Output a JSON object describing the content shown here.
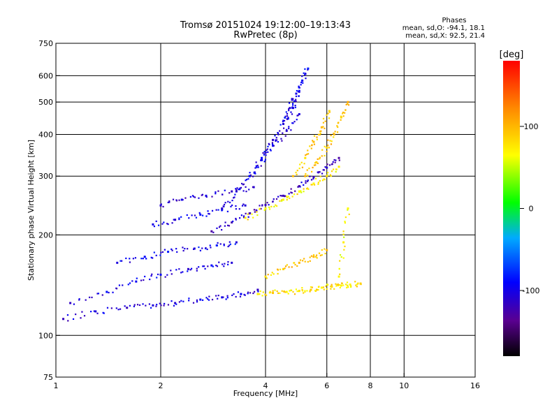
{
  "chart_data": {
    "type": "scatter",
    "title": "Tromsø 20151024 19:12:00–19:13:43",
    "subtitle": "RwPretec (8p)",
    "xlabel": "Frequency [MHz]",
    "ylabel": "Stationary phase Virtual Height [km]",
    "x_scale": "log",
    "y_scale": "log",
    "xlim": [
      1,
      16
    ],
    "ylim": [
      75,
      750
    ],
    "x_ticks": [
      1,
      2,
      4,
      6,
      8,
      10,
      16
    ],
    "y_ticks": [
      75,
      100,
      200,
      300,
      400,
      500,
      600,
      750
    ],
    "x_grid": [
      2,
      4,
      6,
      8,
      10
    ],
    "y_grid": [
      100,
      200,
      300,
      400,
      500,
      600
    ],
    "grid": true,
    "stats": {
      "title": "Phases",
      "o_line": "mean, sd,O: -94.1, 18.1",
      "x_line": "mean, sd,X:  92.5, 21.4"
    },
    "colorbar": {
      "label": "[deg]",
      "ticks": [
        100,
        0,
        -100
      ],
      "range": [
        -180,
        180
      ],
      "colors": [
        "#000000",
        "#5a0090",
        "#0000ff",
        "#00aaff",
        "#00ff00",
        "#ffff00",
        "#ff8800",
        "#ff0000"
      ]
    },
    "traces": [
      {
        "x": [
          1.05,
          1.3,
          1.6,
          1.9,
          2.2,
          2.6,
          3.0,
          3.4,
          3.8
        ],
        "y": [
          112,
          118,
          121,
          123,
          125,
          128,
          130,
          133,
          137
        ],
        "phase": -105
      },
      {
        "x": [
          1.1,
          1.4,
          1.7,
          2.0,
          2.4,
          2.8,
          3.2
        ],
        "y": [
          125,
          135,
          145,
          152,
          158,
          162,
          165
        ],
        "phase": -100
      },
      {
        "x": [
          1.5,
          1.8,
          2.1,
          2.5,
          2.9,
          3.3
        ],
        "y": [
          165,
          172,
          178,
          182,
          186,
          190
        ],
        "phase": -95
      },
      {
        "x": [
          1.9,
          2.2,
          2.6,
          3.0,
          3.5
        ],
        "y": [
          215,
          222,
          230,
          238,
          245
        ],
        "phase": -100
      },
      {
        "x": [
          2.0,
          2.3,
          2.7,
          3.2,
          3.7
        ],
        "y": [
          245,
          255,
          262,
          270,
          278
        ],
        "phase": -110
      },
      {
        "x": [
          2.8,
          3.2,
          3.6,
          4.0,
          4.5,
          5.0,
          5.5,
          6.0,
          6.5
        ],
        "y": [
          205,
          218,
          232,
          246,
          262,
          280,
          298,
          318,
          340
        ],
        "phase": -115
      },
      {
        "x": [
          3.0,
          3.3,
          3.6,
          3.9,
          4.2,
          4.6,
          5.0
        ],
        "y": [
          240,
          270,
          300,
          335,
          370,
          410,
          460
        ],
        "phase": -105
      },
      {
        "x": [
          3.6,
          3.9,
          4.2,
          4.5,
          4.8,
          5.0
        ],
        "y": [
          300,
          340,
          385,
          430,
          480,
          540
        ],
        "phase": -100
      },
      {
        "x": [
          4.5,
          4.7,
          4.9,
          5.1,
          5.3
        ],
        "y": [
          430,
          480,
          530,
          580,
          630
        ],
        "phase": -95
      },
      {
        "x": [
          3.5,
          4.0,
          4.5,
          5.0,
          5.5,
          6.0,
          6.5
        ],
        "y": [
          225,
          240,
          255,
          270,
          285,
          300,
          320
        ],
        "phase": 75
      },
      {
        "x": [
          5.2,
          5.6,
          6.0,
          6.3,
          6.6,
          6.9
        ],
        "y": [
          300,
          330,
          365,
          400,
          450,
          500
        ],
        "phase": 95
      },
      {
        "x": [
          4.8,
          5.2,
          5.5,
          5.8,
          6.1
        ],
        "y": [
          300,
          340,
          380,
          420,
          470
        ],
        "phase": 90
      },
      {
        "x": [
          3.8,
          4.2,
          4.6,
          5.0,
          5.4,
          5.8,
          6.2,
          6.6,
          7.0,
          7.5
        ],
        "y": [
          133,
          134,
          135,
          136,
          137,
          139,
          140,
          141,
          142,
          143
        ],
        "phase": 80
      },
      {
        "x": [
          4.0,
          4.5,
          5.0,
          5.5,
          6.0
        ],
        "y": [
          150,
          158,
          165,
          172,
          180
        ],
        "phase": 90
      },
      {
        "x": [
          6.5,
          6.7,
          6.9
        ],
        "y": [
          150,
          190,
          240
        ],
        "phase": 70
      }
    ]
  }
}
